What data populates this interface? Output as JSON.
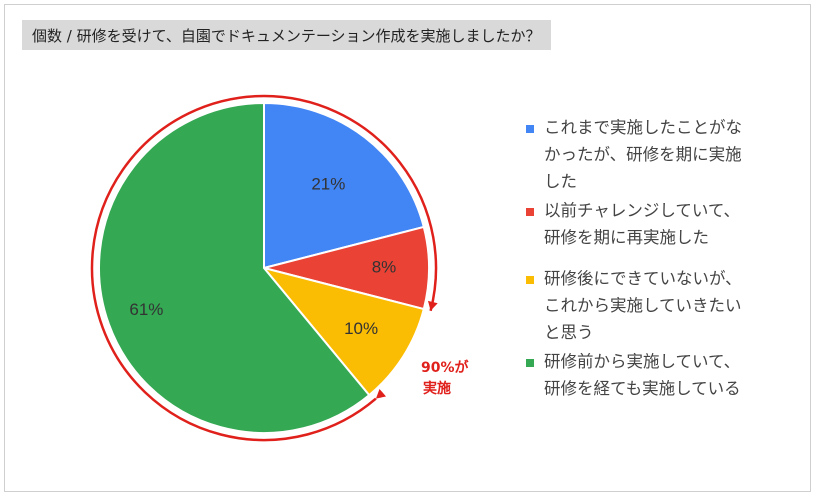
{
  "title": "個数 / 研修を受けて、自園でドキュメンテーション作成を実施しましたか？",
  "chart_data": {
    "type": "pie",
    "categories": [
      "これまで実施したことがなかったが、研修を期に実施した",
      "以前チャレンジしていて、研修を期に再実施した",
      "研修後にできていないが、これから実施していきたいと思う",
      "研修前から実施していて、研修を経ても実施している"
    ],
    "values": [
      21,
      8,
      10,
      61
    ],
    "labels": [
      "21%",
      "8%",
      "10%",
      "61%"
    ],
    "colors": [
      "#4285f4",
      "#ea4335",
      "#fbbc04",
      "#34a853"
    ],
    "legend_position": "right",
    "annotation": {
      "line1": "90%が",
      "line2": "実施",
      "color": "#e0201b"
    }
  },
  "legend": {
    "items": [
      {
        "lines": [
          "これまで実施したことがな",
          "かったが、研修を期に実施",
          "した"
        ],
        "color": "#4285f4"
      },
      {
        "lines": [
          "以前チャレンジしていて、",
          "研修を期に再実施した"
        ],
        "color": "#ea4335"
      },
      {
        "lines": [
          "研修後にできていないが、",
          "これから実施していきたい",
          "と思う"
        ],
        "color": "#fbbc04"
      },
      {
        "lines": [
          "研修前から実施していて、",
          "研修を経ても実施している"
        ],
        "color": "#34a853"
      }
    ]
  }
}
